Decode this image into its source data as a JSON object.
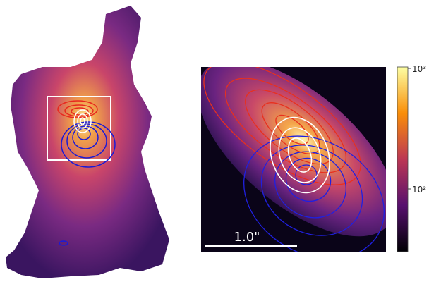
{
  "zoom_panel": {
    "scale_bar_label": "1.0\""
  },
  "colorbar": {
    "labels": [
      "10³",
      "10²"
    ]
  }
}
